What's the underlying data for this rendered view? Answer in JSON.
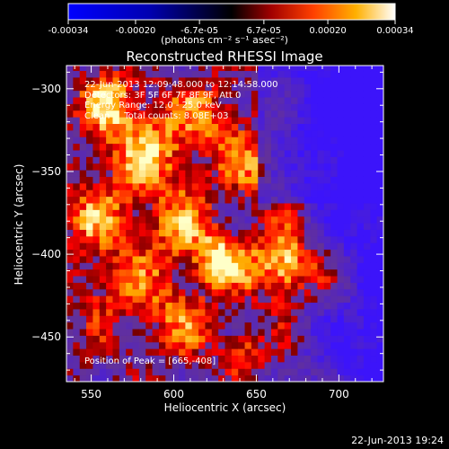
{
  "colorbar": {
    "tick_labels": [
      "-0.00034",
      "-0.00020",
      "-6.7e-05",
      "6.7e-05",
      "0.00020",
      "0.00034"
    ],
    "tick_values": [
      -0.00034,
      -0.0002,
      -6.7e-05,
      6.7e-05,
      0.0002,
      0.00034
    ],
    "range": [
      -0.00034,
      0.00034
    ],
    "units_label": "(photons cm⁻² s⁻¹ asec⁻²)"
  },
  "chart_data": {
    "type": "heatmap",
    "title": "Reconstructed RHESSI Image",
    "xlabel": "Heliocentric X (arcsec)",
    "ylabel": "Heliocentric Y (arcsec)",
    "xlim": [
      535,
      727
    ],
    "ylim": [
      -477,
      -286
    ],
    "x_ticks": [
      550,
      600,
      650,
      700
    ],
    "y_ticks": [
      -300,
      -350,
      -400,
      -450
    ],
    "x_tick_labels": [
      "550",
      "600",
      "650",
      "700"
    ],
    "y_tick_labels": [
      "−300",
      "−350",
      "−400",
      "−450"
    ],
    "peak": [
      665,
      -408
    ],
    "annotations": [
      "22-Jun-2013 12:09:48.000 to 12:14:58.000",
      "Detectors: 3F 5F 6F 7F 8F 9F, Att 0",
      "Energy Range: 12.0 - 25.0 keV",
      "Clean     Total counts: 8.08E+03",
      "Position of Peak = [665,-408]"
    ]
  },
  "footer": {
    "timestamp": "22-Jun-2013 19:24"
  },
  "colors": {
    "background": "#000000",
    "negative": "#0000ff",
    "positive_high": "#ffffff",
    "mid": "#000000"
  }
}
